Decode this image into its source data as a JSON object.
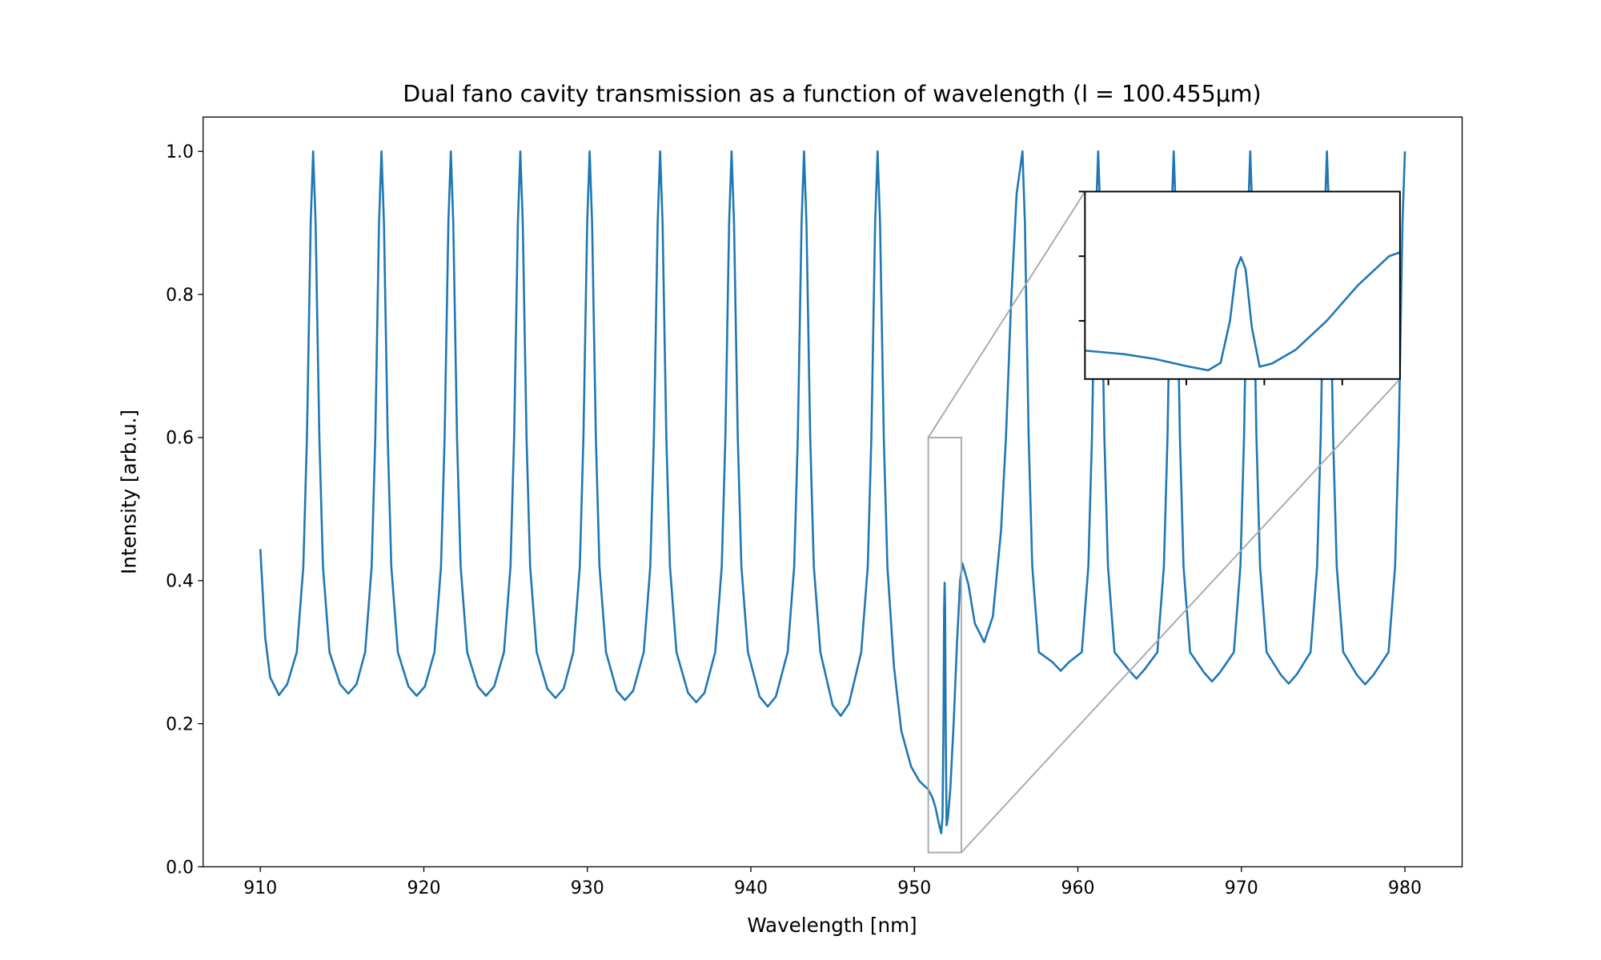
{
  "chart_data": {
    "type": "line",
    "title": "Dual fano cavity transmission as a function of wavelength (l = 100.455μm)",
    "xlabel": "Wavelength [nm]",
    "ylabel": "Intensity [arb.u.]",
    "color": "#1f77b4",
    "xlim": [
      906.5,
      983.5
    ],
    "xticks": [
      910,
      920,
      930,
      940,
      950,
      960,
      970,
      980
    ],
    "ylim": [
      0,
      1.048
    ],
    "yticks": [
      {
        "value": 0,
        "label": "0.0"
      },
      0.2,
      0.4,
      0.6,
      0.8,
      {
        "value": 1,
        "label": "1.0"
      }
    ],
    "grid": false,
    "x": [
      910.0,
      910.3,
      910.6,
      911.14,
      911.64,
      912.23,
      912.63,
      912.85,
      913.08,
      913.23,
      913.38,
      913.61,
      913.83,
      914.23,
      914.88,
      915.38,
      915.88,
      916.41,
      916.81,
      917.03,
      917.26,
      917.41,
      917.56,
      917.79,
      918.01,
      918.41,
      919.06,
      919.56,
      920.06,
      920.65,
      921.05,
      921.27,
      921.5,
      921.65,
      921.8,
      922.03,
      922.25,
      922.65,
      923.3,
      923.8,
      924.3,
      924.9,
      925.3,
      925.52,
      925.75,
      925.9,
      926.05,
      926.28,
      926.5,
      926.9,
      927.55,
      928.05,
      928.55,
      929.14,
      929.54,
      929.76,
      929.99,
      930.14,
      930.29,
      930.52,
      930.74,
      931.14,
      931.8,
      932.3,
      932.8,
      933.45,
      933.85,
      934.07,
      934.3,
      934.45,
      934.6,
      934.83,
      935.05,
      935.45,
      936.16,
      936.66,
      937.16,
      937.82,
      938.22,
      938.44,
      938.67,
      938.82,
      938.97,
      939.2,
      939.42,
      939.82,
      940.53,
      941.03,
      941.53,
      942.25,
      942.65,
      942.87,
      943.1,
      943.25,
      943.4,
      943.63,
      943.85,
      944.25,
      945.0,
      945.5,
      946.0,
      946.75,
      947.15,
      947.37,
      947.6,
      947.75,
      947.9,
      948.13,
      948.35,
      948.75,
      949.2,
      949.8,
      950.3,
      950.85,
      951.1,
      951.3,
      951.5,
      951.64,
      951.72,
      951.78,
      951.82,
      951.85,
      951.88,
      951.92,
      951.97,
      952.05,
      952.2,
      952.4,
      952.6,
      952.8,
      952.94,
      953.3,
      953.7,
      954.27,
      954.8,
      955.3,
      955.6,
      955.9,
      956.25,
      956.61,
      956.76,
      956.99,
      957.21,
      957.61,
      958.45,
      958.95,
      959.45,
      960.24,
      960.64,
      960.86,
      961.09,
      961.24,
      961.39,
      961.62,
      961.84,
      962.24,
      963.08,
      963.58,
      964.08,
      964.86,
      965.26,
      965.48,
      965.71,
      965.86,
      966.01,
      966.24,
      966.46,
      966.86,
      967.7,
      968.2,
      968.7,
      969.54,
      969.94,
      970.16,
      970.39,
      970.54,
      970.69,
      970.92,
      971.14,
      971.54,
      972.39,
      972.89,
      973.39,
      974.23,
      974.63,
      974.85,
      975.08,
      975.23,
      975.38,
      975.61,
      975.83,
      976.23,
      977.07,
      977.57,
      978.07,
      979.0,
      979.4,
      979.62,
      979.85,
      980.0
    ],
    "values": [
      0.444,
      0.32,
      0.265,
      0.24,
      0.255,
      0.3,
      0.42,
      0.6,
      0.9,
      1.0,
      0.9,
      0.6,
      0.42,
      0.3,
      0.255,
      0.242,
      0.255,
      0.3,
      0.42,
      0.6,
      0.9,
      1.0,
      0.9,
      0.6,
      0.42,
      0.3,
      0.252,
      0.239,
      0.252,
      0.3,
      0.42,
      0.6,
      0.9,
      1.0,
      0.9,
      0.6,
      0.42,
      0.3,
      0.252,
      0.239,
      0.252,
      0.3,
      0.42,
      0.6,
      0.9,
      1.0,
      0.9,
      0.6,
      0.42,
      0.3,
      0.249,
      0.236,
      0.249,
      0.3,
      0.42,
      0.6,
      0.9,
      1.0,
      0.9,
      0.6,
      0.42,
      0.3,
      0.246,
      0.233,
      0.246,
      0.3,
      0.42,
      0.6,
      0.9,
      1.0,
      0.9,
      0.6,
      0.42,
      0.3,
      0.243,
      0.23,
      0.243,
      0.3,
      0.42,
      0.6,
      0.9,
      1.0,
      0.9,
      0.6,
      0.42,
      0.3,
      0.238,
      0.224,
      0.238,
      0.3,
      0.42,
      0.6,
      0.9,
      1.0,
      0.9,
      0.6,
      0.42,
      0.3,
      0.226,
      0.211,
      0.228,
      0.3,
      0.42,
      0.6,
      0.9,
      1.0,
      0.9,
      0.6,
      0.42,
      0.28,
      0.19,
      0.14,
      0.12,
      0.108,
      0.097,
      0.082,
      0.06,
      0.047,
      0.07,
      0.2,
      0.36,
      0.397,
      0.36,
      0.18,
      0.058,
      0.068,
      0.11,
      0.2,
      0.31,
      0.4,
      0.424,
      0.395,
      0.34,
      0.314,
      0.35,
      0.47,
      0.6,
      0.78,
      0.94,
      1.0,
      0.9,
      0.6,
      0.42,
      0.3,
      0.286,
      0.274,
      0.286,
      0.3,
      0.42,
      0.6,
      0.9,
      1.0,
      0.9,
      0.6,
      0.42,
      0.3,
      0.276,
      0.263,
      0.276,
      0.3,
      0.42,
      0.6,
      0.9,
      1.0,
      0.9,
      0.6,
      0.42,
      0.3,
      0.272,
      0.259,
      0.272,
      0.3,
      0.42,
      0.6,
      0.9,
      1.0,
      0.9,
      0.6,
      0.42,
      0.3,
      0.269,
      0.256,
      0.269,
      0.3,
      0.42,
      0.6,
      0.9,
      1.0,
      0.9,
      0.6,
      0.42,
      0.3,
      0.268,
      0.255,
      0.268,
      0.3,
      0.42,
      0.6,
      0.9,
      1.0
    ],
    "inset": {
      "xlim": [
        950.85,
        952.87
      ],
      "ylim": [
        0.02,
        0.6
      ],
      "xticks": [
        951,
        951.5,
        952,
        952.5
      ],
      "yticks": [
        0.2,
        0.4,
        0.6
      ]
    }
  }
}
